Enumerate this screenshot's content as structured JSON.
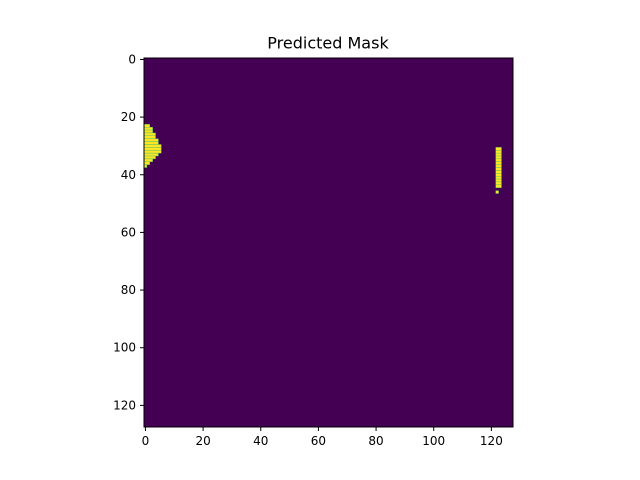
{
  "chart_data": {
    "type": "heatmap",
    "title": "Predicted Mask",
    "xlabel": "",
    "ylabel": "",
    "image_size": [
      128,
      128
    ],
    "xlim": [
      -0.5,
      127.5
    ],
    "ylim": [
      127.5,
      -0.5
    ],
    "y_axis_inverted": true,
    "x_ticks": [
      0,
      20,
      40,
      60,
      80,
      100,
      120
    ],
    "y_ticks": [
      0,
      20,
      40,
      60,
      80,
      100,
      120
    ],
    "grid": false,
    "colormap": "viridis",
    "background_color": "#440154",
    "mask_color": "#fde725",
    "edge_color": "#3fbc73",
    "background_value": 0,
    "mask_value": 1,
    "mask_regions": [
      {
        "name": "left-region",
        "rows": [
          [
            23,
            0,
            1
          ],
          [
            24,
            0,
            2
          ],
          [
            25,
            0,
            2
          ],
          [
            26,
            0,
            3
          ],
          [
            27,
            0,
            3
          ],
          [
            28,
            0,
            4
          ],
          [
            29,
            0,
            4
          ],
          [
            30,
            0,
            5
          ],
          [
            31,
            0,
            5
          ],
          [
            32,
            0,
            5
          ],
          [
            33,
            0,
            4
          ],
          [
            34,
            0,
            3
          ],
          [
            35,
            0,
            2
          ],
          [
            36,
            0,
            1
          ],
          [
            37,
            0,
            0
          ]
        ]
      },
      {
        "name": "right-region",
        "rows": [
          [
            31,
            122,
            123
          ],
          [
            32,
            122,
            123
          ],
          [
            33,
            122,
            123
          ],
          [
            34,
            122,
            123
          ],
          [
            35,
            122,
            123
          ],
          [
            36,
            122,
            123
          ],
          [
            37,
            122,
            123
          ],
          [
            38,
            122,
            123
          ],
          [
            39,
            122,
            123
          ],
          [
            40,
            122,
            123
          ],
          [
            41,
            122,
            123
          ],
          [
            42,
            122,
            123
          ],
          [
            43,
            122,
            123
          ],
          [
            44,
            122,
            123
          ],
          [
            46,
            122,
            122
          ]
        ]
      }
    ]
  }
}
